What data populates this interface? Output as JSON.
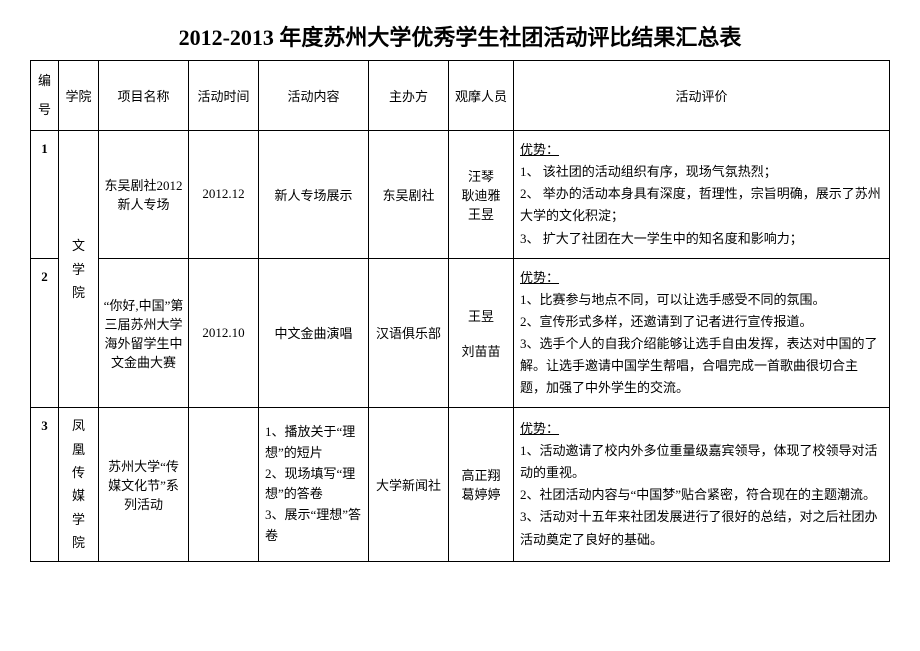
{
  "title": "2012-2013 年度苏州大学优秀学生社团活动评比结果汇总表",
  "headers": {
    "num": "编号",
    "college": "学院",
    "project": "项目名称",
    "time": "活动时间",
    "content": "活动内容",
    "host": "主办方",
    "observer": "观摩人员",
    "eval": "活动评价"
  },
  "rows": [
    {
      "num": "1",
      "college": "文学院",
      "project": "东吴剧社2012 新人专场",
      "time": "2012.12",
      "content": "新人专场展示",
      "host": "东吴剧社",
      "observer": "汪琴\n耿迪雅\n王昱",
      "eval_label": "优势：",
      "eval_body": "1、 该社团的活动组织有序，现场气氛热烈；\n2、 举办的活动本身具有深度，哲理性，宗旨明确，展示了苏州大学的文化积淀；\n3、 扩大了社团在大一学生中的知名度和影响力；"
    },
    {
      "num": "2",
      "project": "“你好,中国”第三届苏州大学海外留学生中文金曲大赛",
      "time": "2012.10",
      "content": "中文金曲演唱",
      "host": "汉语俱乐部",
      "observer": "王昱\n\n刘苗苗",
      "eval_label": "优势：",
      "eval_body": "1、比赛参与地点不同，可以让选手感受不同的氛围。\n2、宣传形式多样，还邀请到了记者进行宣传报道。\n3、选手个人的自我介绍能够让选手自由发挥，表达对中国的了解。让选手邀请中国学生帮唱，合唱完成一首歌曲很切合主题，加强了中外学生的交流。"
    },
    {
      "num": "3",
      "college": "凤凰传媒学院",
      "project": "苏州大学“传媒文化节”系列活动",
      "time": "",
      "content": "1、播放关于“理想”的短片\n2、现场填写“理想”的答卷\n3、展示“理想”答卷",
      "host": "大学新闻社",
      "observer": "高正翔\n葛婷婷",
      "eval_label": "优势：",
      "eval_body": "1、活动邀请了校内外多位重量级嘉宾领导，体现了校领导对活动的重视。\n2、社团活动内容与“中国梦”贴合紧密，符合现在的主题潮流。\n3、活动对十五年来社团发展进行了很好的总结，对之后社团办活动奠定了良好的基础。"
    }
  ]
}
